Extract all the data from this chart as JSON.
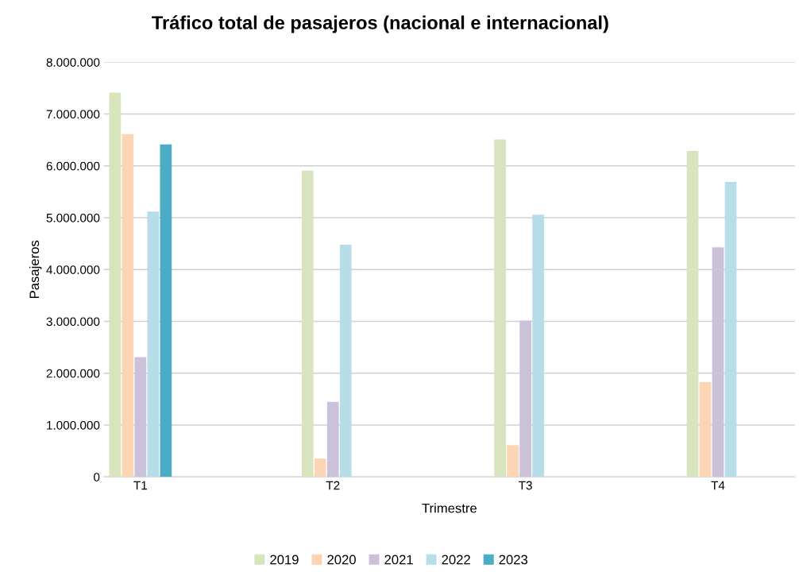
{
  "chart_data": {
    "type": "bar",
    "title": "Tráfico total de pasajeros (nacional e internacional)",
    "xlabel": "Trimestre",
    "ylabel": "Pasajeros",
    "categories": [
      "T1",
      "T2",
      "T3",
      "T4"
    ],
    "series": [
      {
        "name": "2019",
        "color": "#d7e4bd",
        "values": [
          7415000,
          5910000,
          6510000,
          6290000
        ]
      },
      {
        "name": "2020",
        "color": "#fcd5b5",
        "values": [
          6615000,
          354000,
          615000,
          1830000
        ]
      },
      {
        "name": "2021",
        "color": "#ccc1da",
        "values": [
          2310000,
          1450000,
          3015000,
          4430000
        ]
      },
      {
        "name": "2022",
        "color": "#b7dee8",
        "values": [
          5120000,
          4480000,
          5060000,
          5690000
        ]
      },
      {
        "name": "2023",
        "color": "#4bacc6",
        "values": [
          6415000,
          null,
          null,
          null
        ]
      }
    ],
    "ylim": [
      0,
      8000000
    ],
    "yticks": [
      0,
      {
        "value": 1000000,
        "label": "1.000.000"
      },
      {
        "value": 2000000,
        "label": "2.000.000"
      },
      {
        "value": 3000000,
        "label": "3.000.000"
      },
      {
        "value": 4000000,
        "label": "4.000.000"
      },
      {
        "value": 5000000,
        "label": "5.000.000"
      },
      {
        "value": 6000000,
        "label": "6.000.000"
      },
      {
        "value": 7000000,
        "label": "7.000.000"
      },
      {
        "value": 8000000,
        "label": "8.000.000"
      }
    ],
    "grid": "y",
    "legend": "bottom"
  }
}
